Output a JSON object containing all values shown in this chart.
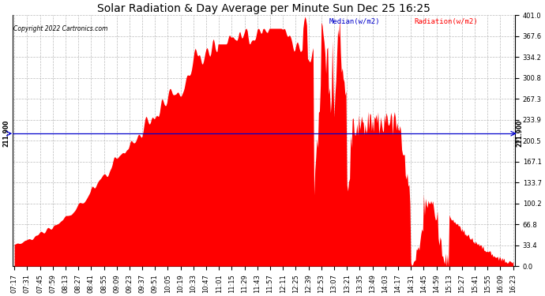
{
  "title": "Solar Radiation & Day Average per Minute Sun Dec 25 16:25",
  "copyright": "Copyright 2022 Cartronics.com",
  "median_label": "Median(w/m2)",
  "radiation_label": "Radiation(w/m2)",
  "median_value": 211.9,
  "ymin": 0.0,
  "ymax": 401.0,
  "ytick_values": [
    0.0,
    33.4,
    66.8,
    100.2,
    133.7,
    167.1,
    200.5,
    233.9,
    267.3,
    300.8,
    334.2,
    367.6,
    401.0
  ],
  "fill_color": "#FF0000",
  "line_color": "#0000CC",
  "median_annotation": "211.900",
  "background_color": "#FFFFFF",
  "grid_color": "#BBBBBB",
  "title_fontsize": 10,
  "tick_fontsize": 6,
  "x_tick_labels": [
    "07:17",
    "07:31",
    "07:45",
    "07:59",
    "08:13",
    "08:27",
    "08:41",
    "08:55",
    "09:09",
    "09:23",
    "09:37",
    "09:51",
    "10:05",
    "10:19",
    "10:33",
    "10:47",
    "11:01",
    "11:15",
    "11:29",
    "11:43",
    "11:57",
    "12:11",
    "12:25",
    "12:39",
    "12:53",
    "13:07",
    "13:21",
    "13:35",
    "13:49",
    "14:03",
    "14:17",
    "14:31",
    "14:45",
    "14:59",
    "15:13",
    "15:27",
    "15:41",
    "15:55",
    "16:09",
    "16:23"
  ]
}
